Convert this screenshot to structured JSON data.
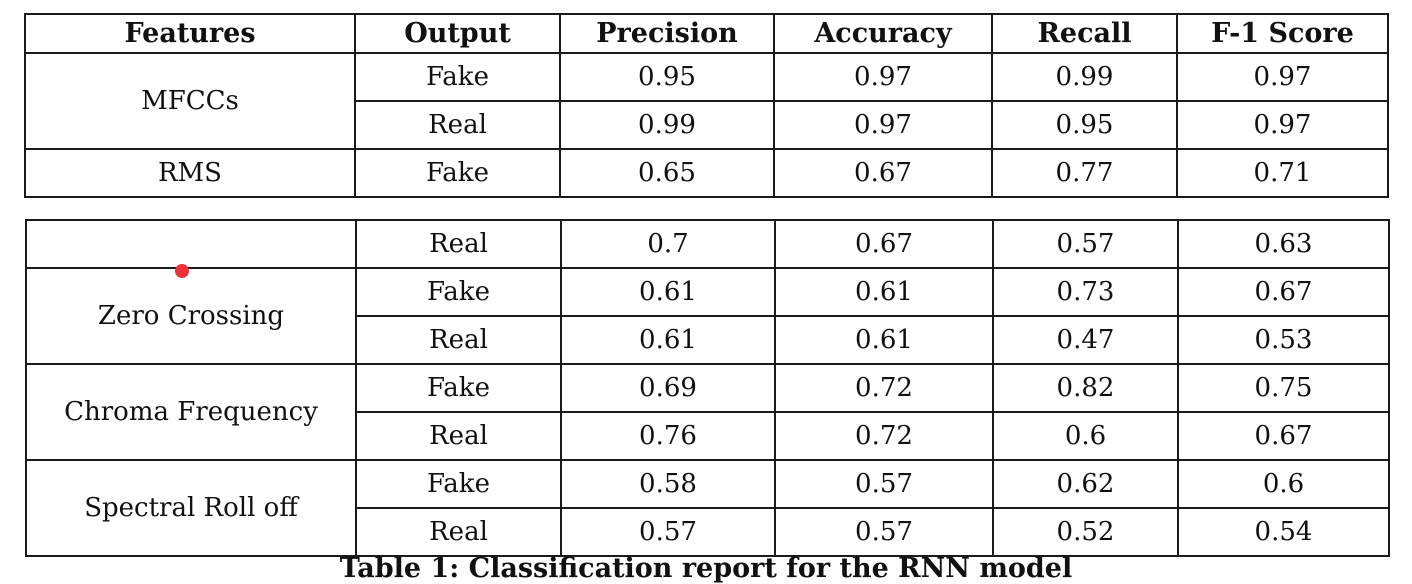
{
  "headers": [
    "Features",
    "Output",
    "Precision",
    "Accuracy",
    "Recall",
    "F-1 Score"
  ],
  "top_table": {
    "groups": [
      {
        "feature": "MFCCs",
        "rows": [
          {
            "output": "Fake",
            "precision": "0.95",
            "accuracy": "0.97",
            "recall": "0.99",
            "f1": "0.97"
          },
          {
            "output": "Real",
            "precision": "0.99",
            "accuracy": "0.97",
            "recall": "0.95",
            "f1": "0.97"
          }
        ]
      },
      {
        "feature": "RMS",
        "rows": [
          {
            "output": "Fake",
            "precision": "0.65",
            "accuracy": "0.67",
            "recall": "0.77",
            "f1": "0.71"
          }
        ]
      }
    ]
  },
  "bottom_table": {
    "groups": [
      {
        "feature": "",
        "rows": [
          {
            "output": "Real",
            "precision": "0.7",
            "accuracy": "0.67",
            "recall": "0.57",
            "f1": "0.63"
          }
        ]
      },
      {
        "feature": "Zero Crossing",
        "rows": [
          {
            "output": "Fake",
            "precision": "0.61",
            "accuracy": "0.61",
            "recall": "0.73",
            "f1": "0.67"
          },
          {
            "output": "Real",
            "precision": "0.61",
            "accuracy": "0.61",
            "recall": "0.47",
            "f1": "0.53"
          }
        ]
      },
      {
        "feature": "Chroma Frequency",
        "rows": [
          {
            "output": "Fake",
            "precision": "0.69",
            "accuracy": "0.72",
            "recall": "0.82",
            "f1": "0.75"
          },
          {
            "output": "Real",
            "precision": "0.76",
            "accuracy": "0.72",
            "recall": "0.6",
            "f1": "0.67"
          }
        ]
      },
      {
        "feature": "Spectral Roll off",
        "rows": [
          {
            "output": "Fake",
            "precision": "0.58",
            "accuracy": "0.57",
            "recall": "0.62",
            "f1": "0.6"
          },
          {
            "output": "Real",
            "precision": "0.57",
            "accuracy": "0.57",
            "recall": "0.52",
            "f1": "0.54"
          }
        ]
      }
    ]
  },
  "caption": "Table 1: Classification report for the RNN model",
  "colors": {
    "border": "#1a1a1a",
    "text": "#111111",
    "cursor_dot": "#f0303a"
  }
}
